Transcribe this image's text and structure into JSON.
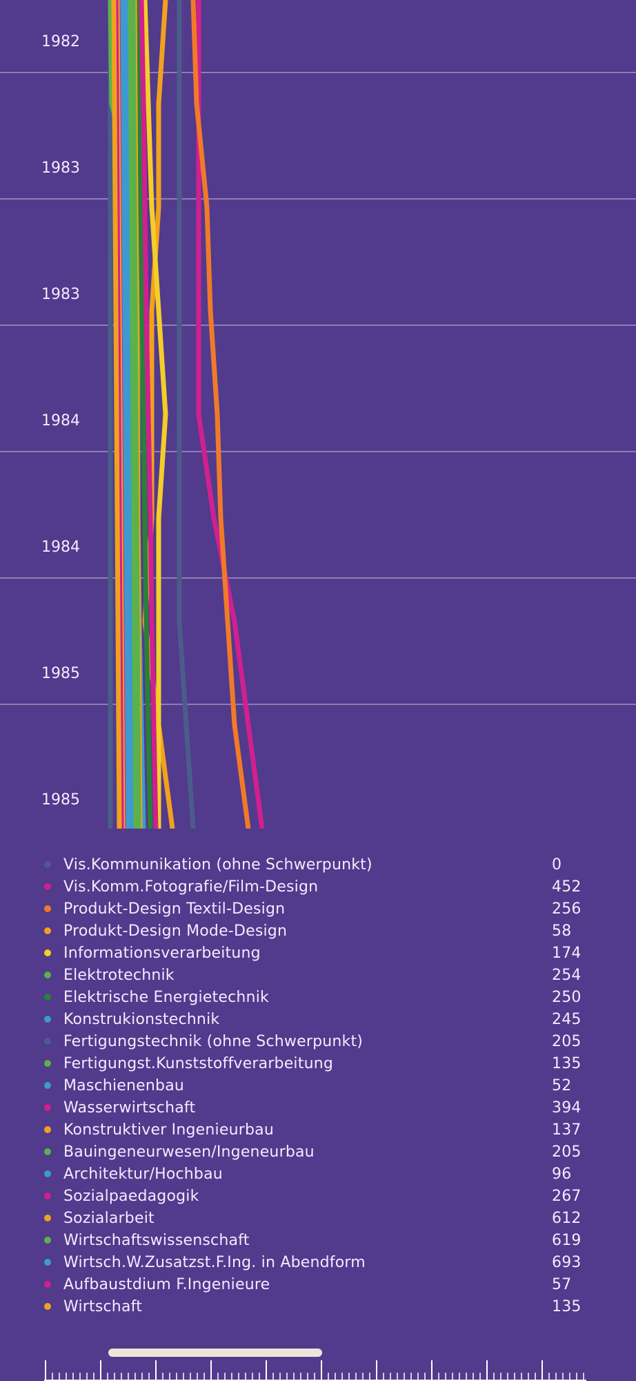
{
  "chart_data": {
    "type": "line",
    "orientation": "vertical-time",
    "y_axis_ticks": [
      "1982",
      "1983",
      "1983",
      "1984",
      "1984",
      "1985",
      "1985"
    ],
    "grid": true,
    "background": "#523a8c",
    "series": [
      {
        "name": "Vis.Kommunikation (ohne Schwerpunkt)",
        "color": "#4a5d8a",
        "value": 0,
        "x": [
          0,
          0,
          0,
          0,
          0,
          0,
          0,
          0,
          0
        ]
      },
      {
        "name": "Vis.Komm.Fotografie/Film-Design",
        "color": "#d0208f",
        "value": 452,
        "x": [
          128,
          128,
          128,
          128,
          128,
          150,
          180,
          200,
          220
        ]
      },
      {
        "name": "Produkt-Design Textil-Design",
        "color": "#f07a2a",
        "value": 256,
        "x": [
          120,
          125,
          140,
          145,
          155,
          160,
          170,
          180,
          200
        ]
      },
      {
        "name": "Produkt-Design Mode-Design",
        "color": "#f0a21e",
        "value": 58,
        "x": [
          80,
          70,
          70,
          60,
          60,
          60,
          50,
          70,
          90
        ]
      },
      {
        "name": "Informationsverarbeitung",
        "color": "#f4cd2a",
        "value": 174,
        "x": [
          50,
          55,
          60,
          70,
          80,
          70,
          70,
          70,
          70
        ]
      },
      {
        "name": "Elektrotechnik",
        "color": "#5bb24a",
        "value": 254,
        "x": [
          0,
          2,
          40,
          40,
          40,
          40,
          40,
          40,
          40
        ]
      },
      {
        "name": "Elektrische Energietechnik",
        "color": "#2a7f3a",
        "value": 250,
        "x": [
          40,
          42,
          44,
          46,
          48,
          50,
          52,
          55,
          58
        ]
      },
      {
        "name": "Konstrukionstechnik",
        "color": "#3d9ad0",
        "value": 245,
        "x": [
          30,
          32,
          34,
          36,
          38,
          40,
          42,
          45,
          48
        ]
      },
      {
        "name": "Fertigungstechnik (ohne Schwerpunkt)",
        "color": "#4a5d8a",
        "value": 205,
        "x": [
          100,
          100,
          100,
          100,
          100,
          100,
          100,
          110,
          120
        ]
      },
      {
        "name": "Fertigungst.Kunststoffverarbeitung",
        "color": "#5bb24a",
        "value": 135,
        "x": [
          20,
          22,
          24,
          26,
          28,
          30,
          32,
          34,
          36
        ]
      },
      {
        "name": "Maschienenbau",
        "color": "#3d9ad0",
        "value": 52,
        "x": [
          25,
          26,
          27,
          28,
          29,
          30,
          31,
          32,
          33
        ]
      },
      {
        "name": "Wasserwirtschaft",
        "color": "#d0208f",
        "value": 394,
        "x": [
          45,
          48,
          50,
          52,
          55,
          58,
          60,
          63,
          66
        ]
      },
      {
        "name": "Konstruktiver Ingenieurbau",
        "color": "#f0a21e",
        "value": 137,
        "x": [
          35,
          36,
          37,
          38,
          39,
          40,
          41,
          42,
          43
        ]
      },
      {
        "name": "Bauingeneurwesen/Ingeneurbau",
        "color": "#5bb24a",
        "value": 205,
        "x": [
          28,
          29,
          30,
          31,
          32,
          33,
          34,
          35,
          36
        ]
      },
      {
        "name": "Architektur/Hochbau",
        "color": "#3d9ad0",
        "value": 96,
        "x": [
          22,
          23,
          24,
          25,
          26,
          27,
          28,
          29,
          30
        ]
      },
      {
        "name": "Sozialpaedagogik",
        "color": "#d0208f",
        "value": 267,
        "x": [
          14,
          15,
          16,
          17,
          18,
          19,
          20,
          21,
          22
        ]
      },
      {
        "name": "Sozialarbeit",
        "color": "#f0a21e",
        "value": 612,
        "x": [
          10,
          11,
          12,
          13,
          14,
          15,
          16,
          17,
          18
        ]
      },
      {
        "name": "Wirtschaftswissenschaft",
        "color": "#5bb24a",
        "value": 619,
        "x": [
          33,
          34,
          35,
          36,
          37,
          38,
          39,
          40,
          41
        ]
      },
      {
        "name": "Wirtsch.W.Zusatzst.F.Ing. in Abendform",
        "color": "#3d9ad0",
        "value": 693,
        "x": [
          18,
          19,
          20,
          21,
          22,
          23,
          24,
          25,
          26
        ]
      },
      {
        "name": "Aufbaustdium F.Ingenieure",
        "color": "#d0208f",
        "value": 57,
        "x": [
          8,
          9,
          10,
          11,
          12,
          13,
          14,
          15,
          16
        ]
      },
      {
        "name": "Wirtschaft",
        "color": "#f0a21e",
        "value": 135,
        "x": [
          5,
          6,
          7,
          8,
          9,
          10,
          11,
          12,
          13
        ]
      }
    ]
  }
}
